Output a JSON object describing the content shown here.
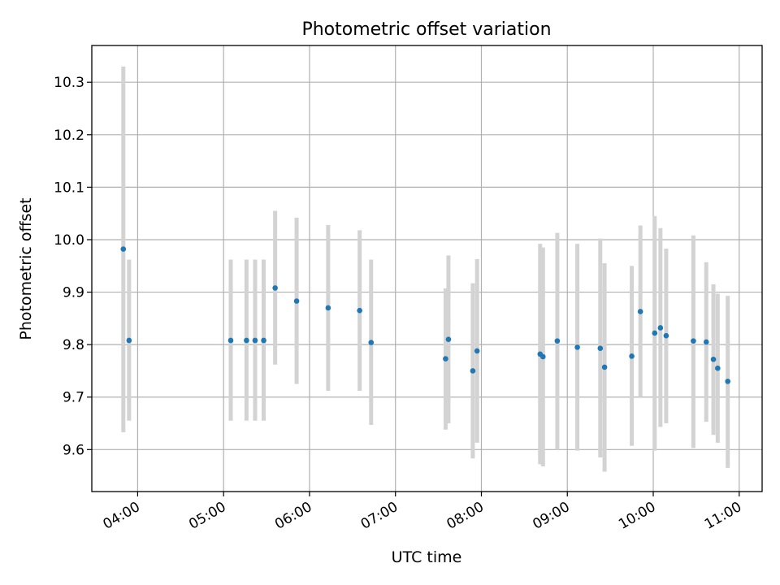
{
  "chart_data": {
    "type": "scatter",
    "title": "Photometric offset variation",
    "xlabel": "UTC time",
    "ylabel": "Photometric offset",
    "x_scale": "time",
    "xlim": [
      "03:28",
      "11:16"
    ],
    "ylim": [
      9.52,
      10.37
    ],
    "xticks": [
      "04:00",
      "05:00",
      "06:00",
      "07:00",
      "08:00",
      "09:00",
      "10:00",
      "11:00"
    ],
    "yticks": [
      "9.6",
      "9.7",
      "9.8",
      "9.9",
      "10.0",
      "10.1",
      "10.2",
      "10.3"
    ],
    "grid": true,
    "colors": {
      "points": "#1f77b4",
      "error_bars": "#d3d3d3"
    },
    "series": [
      {
        "points": [
          {
            "x": "03:50",
            "y": 9.982,
            "lo": 9.633,
            "hi": 10.33
          },
          {
            "x": "03:54",
            "y": 9.808,
            "lo": 9.655,
            "hi": 9.962
          },
          {
            "x": "05:05",
            "y": 9.808,
            "lo": 9.655,
            "hi": 9.962
          },
          {
            "x": "05:16",
            "y": 9.808,
            "lo": 9.655,
            "hi": 9.962
          },
          {
            "x": "05:22",
            "y": 9.808,
            "lo": 9.655,
            "hi": 9.962
          },
          {
            "x": "05:28",
            "y": 9.808,
            "lo": 9.655,
            "hi": 9.962
          },
          {
            "x": "05:36",
            "y": 9.908,
            "lo": 9.762,
            "hi": 10.055
          },
          {
            "x": "05:51",
            "y": 9.883,
            "lo": 9.725,
            "hi": 10.042
          },
          {
            "x": "06:13",
            "y": 9.87,
            "lo": 9.712,
            "hi": 10.028
          },
          {
            "x": "06:35",
            "y": 9.865,
            "lo": 9.712,
            "hi": 10.018
          },
          {
            "x": "06:43",
            "y": 9.804,
            "lo": 9.647,
            "hi": 9.962
          },
          {
            "x": "07:35",
            "y": 9.773,
            "lo": 9.638,
            "hi": 9.907
          },
          {
            "x": "07:37",
            "y": 9.81,
            "lo": 9.65,
            "hi": 9.97
          },
          {
            "x": "07:54",
            "y": 9.75,
            "lo": 9.583,
            "hi": 9.917
          },
          {
            "x": "07:57",
            "y": 9.788,
            "lo": 9.613,
            "hi": 9.963
          },
          {
            "x": "08:41",
            "y": 9.782,
            "lo": 9.572,
            "hi": 9.992
          },
          {
            "x": "08:43",
            "y": 9.777,
            "lo": 9.568,
            "hi": 9.985
          },
          {
            "x": "08:53",
            "y": 9.807,
            "lo": 9.6,
            "hi": 10.013
          },
          {
            "x": "09:07",
            "y": 9.795,
            "lo": 9.598,
            "hi": 9.992
          },
          {
            "x": "09:23",
            "y": 9.793,
            "lo": 9.585,
            "hi": 10.002
          },
          {
            "x": "09:26",
            "y": 9.757,
            "lo": 9.558,
            "hi": 9.955
          },
          {
            "x": "09:45",
            "y": 9.778,
            "lo": 9.607,
            "hi": 9.95
          },
          {
            "x": "09:51",
            "y": 9.863,
            "lo": 9.7,
            "hi": 10.027
          },
          {
            "x": "10:01",
            "y": 9.822,
            "lo": 9.598,
            "hi": 10.045
          },
          {
            "x": "10:05",
            "y": 9.832,
            "lo": 9.643,
            "hi": 10.022
          },
          {
            "x": "10:09",
            "y": 9.817,
            "lo": 9.65,
            "hi": 9.983
          },
          {
            "x": "10:28",
            "y": 9.807,
            "lo": 9.603,
            "hi": 10.008
          },
          {
            "x": "10:37",
            "y": 9.805,
            "lo": 9.653,
            "hi": 9.957
          },
          {
            "x": "10:42",
            "y": 9.772,
            "lo": 9.628,
            "hi": 9.915
          },
          {
            "x": "10:45",
            "y": 9.755,
            "lo": 9.613,
            "hi": 9.897
          },
          {
            "x": "10:52",
            "y": 9.73,
            "lo": 9.565,
            "hi": 9.893
          }
        ]
      }
    ]
  }
}
